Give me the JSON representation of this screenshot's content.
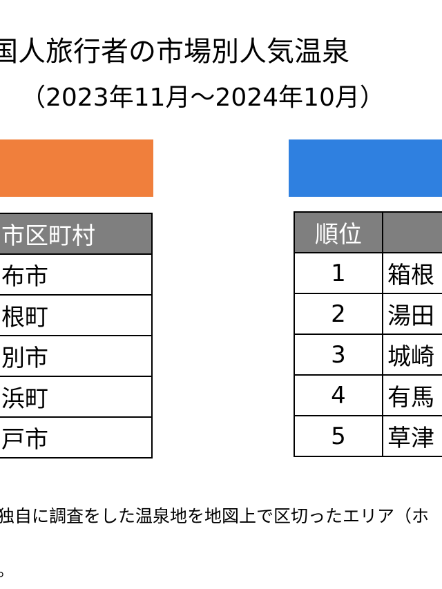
{
  "header": {
    "title": "国人旅行者の市場別人気温泉",
    "subtitle": "（2023年11月～2024年10月）"
  },
  "left_table": {
    "header": "市区町村",
    "rows": [
      "布市",
      "根町",
      "別市",
      "浜町",
      "戸市"
    ]
  },
  "right_table": {
    "header": "順位",
    "rows": [
      [
        1,
        "箱根"
      ],
      [
        2,
        "湯田"
      ],
      [
        3,
        "城崎"
      ],
      [
        4,
        "有馬"
      ],
      [
        5,
        "草津"
      ]
    ]
  },
  "footnote": {
    "line1": "独自に調査をした温泉地を地図上で区切ったエリア（ホ",
    "line2": "。"
  }
}
